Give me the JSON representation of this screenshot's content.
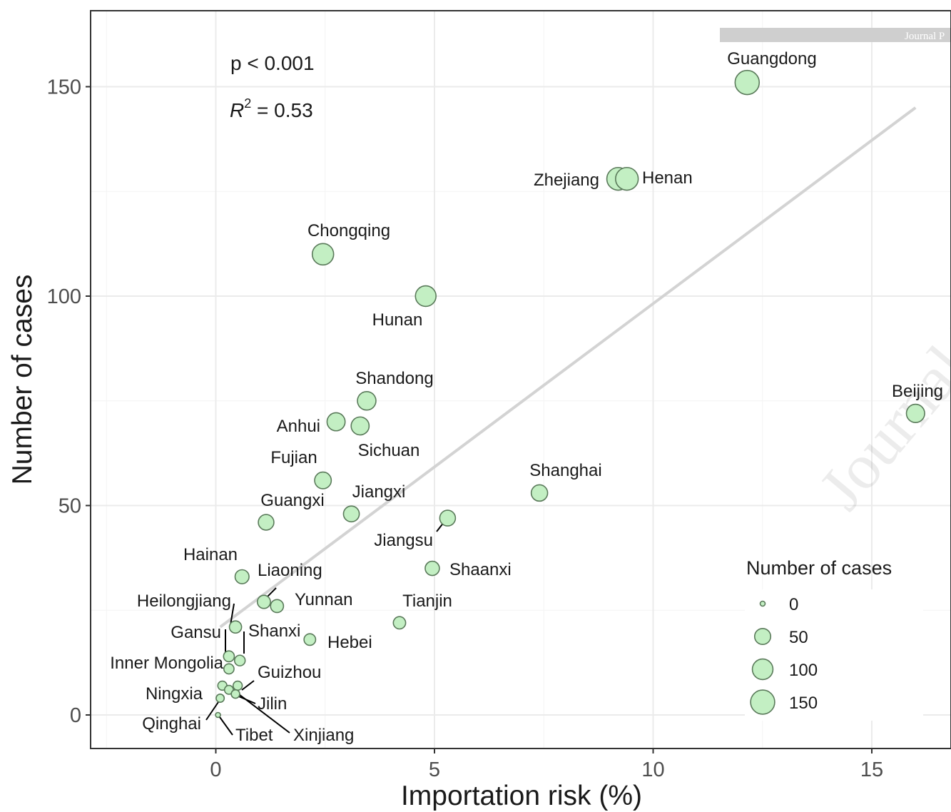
{
  "chart_data": {
    "type": "scatter",
    "xlabel": "Importation risk (%)",
    "ylabel": "Number of cases",
    "xlim": [
      -2.9,
      17
    ],
    "ylim": [
      -8,
      168
    ],
    "x_ticks": [
      0,
      5,
      10,
      15
    ],
    "y_ticks": [
      0,
      50,
      100,
      150
    ],
    "grid": true,
    "annotations": {
      "p_value": "p < 0.001",
      "r2_symbol": "R",
      "r2_exp": "2",
      "r2_value": " = 0.53"
    },
    "regression_line": {
      "x": [
        0.1,
        16.0
      ],
      "y": [
        21,
        145
      ]
    },
    "points": [
      {
        "label": "Guangdong",
        "x": 12.15,
        "y": 151
      },
      {
        "label": "Zhejiang",
        "x": 9.2,
        "y": 128
      },
      {
        "label": "Henan",
        "x": 9.4,
        "y": 128
      },
      {
        "label": "Chongqing",
        "x": 2.45,
        "y": 110
      },
      {
        "label": "Hunan",
        "x": 4.8,
        "y": 100
      },
      {
        "label": "Shandong",
        "x": 3.45,
        "y": 75
      },
      {
        "label": "Beijing",
        "x": 16.0,
        "y": 72
      },
      {
        "label": "Anhui",
        "x": 2.75,
        "y": 70
      },
      {
        "label": "Sichuan",
        "x": 3.3,
        "y": 69
      },
      {
        "label": "Fujian",
        "x": 2.45,
        "y": 56
      },
      {
        "label": "Shanghai",
        "x": 7.4,
        "y": 53
      },
      {
        "label": "Jiangxi",
        "x": 3.1,
        "y": 48
      },
      {
        "label": "Jiangsu",
        "x": 5.3,
        "y": 47
      },
      {
        "label": "Guangxi",
        "x": 1.15,
        "y": 46
      },
      {
        "label": "Shaanxi",
        "x": 4.95,
        "y": 35
      },
      {
        "label": "Hainan",
        "x": 0.6,
        "y": 33
      },
      {
        "label": "Liaoning",
        "x": 1.1,
        "y": 27
      },
      {
        "label": "Yunnan",
        "x": 1.4,
        "y": 26
      },
      {
        "label": "Tianjin",
        "x": 4.2,
        "y": 22
      },
      {
        "label": "Heilongjiang",
        "x": 0.45,
        "y": 21
      },
      {
        "label": "Hebei",
        "x": 2.15,
        "y": 18
      },
      {
        "label": "Gansu",
        "x": 0.3,
        "y": 14
      },
      {
        "label": "Shanxi",
        "x": 0.55,
        "y": 13
      },
      {
        "label": "Inner Mongolia",
        "x": 0.3,
        "y": 11
      },
      {
        "label": "Guizhou",
        "x": 0.5,
        "y": 7
      },
      {
        "label": "Ningxia",
        "x": 0.15,
        "y": 7
      },
      {
        "label": "Jilin",
        "x": 0.3,
        "y": 6
      },
      {
        "label": "Xinjiang",
        "x": 0.45,
        "y": 5
      },
      {
        "label": "Qinghai",
        "x": 0.1,
        "y": 4
      },
      {
        "label": "Tibet",
        "x": 0.05,
        "y": 0
      }
    ],
    "legend": {
      "title": "Number of cases",
      "entries": [
        0,
        50,
        100,
        150
      ],
      "placement": "bottom-right"
    },
    "colors": {
      "point_fill": "#c3efc3",
      "point_stroke": "#5a7a5a",
      "regression": "#d3d3d3",
      "grid": "#ebebeb"
    }
  },
  "watermark": {
    "text": "Journal Pre-proof",
    "banner_text": "Journal P"
  }
}
